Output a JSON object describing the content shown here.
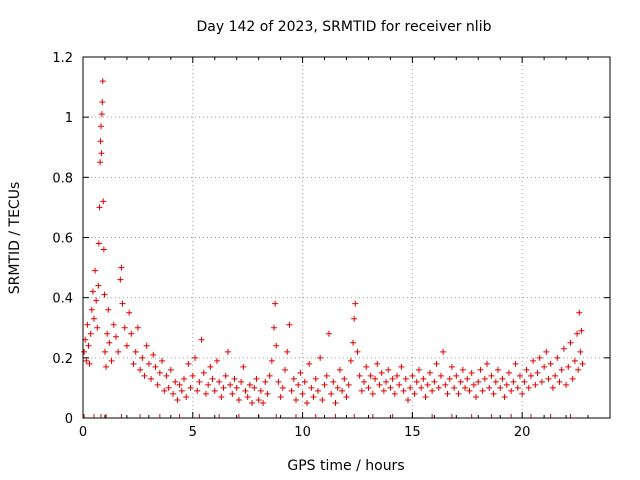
{
  "chart_data": {
    "type": "scatter",
    "title": "Day 142 of 2023, SRMTID for receiver nlib",
    "xlabel": "GPS time / hours",
    "ylabel": "SRMTID / TECUs",
    "xlim": [
      0,
      24
    ],
    "ylim": [
      0,
      1.2
    ],
    "x_ticks": [
      "0",
      "5",
      "10",
      "15",
      "20"
    ],
    "x_tick_values": [
      0,
      5,
      10,
      15,
      20
    ],
    "y_ticks": [
      "0",
      "0.2",
      "0.4",
      "0.6",
      "0.8",
      "1",
      "1.2"
    ],
    "y_tick_values": [
      0,
      0.2,
      0.4,
      0.6,
      0.8,
      1.0,
      1.2
    ],
    "grid": true,
    "marker": "plus",
    "series_color": "#e00000",
    "series": [
      {
        "name": "SRMTID",
        "points": [
          [
            0.05,
            0.22
          ],
          [
            0.1,
            0.26
          ],
          [
            0.15,
            0.19
          ],
          [
            0.2,
            0.31
          ],
          [
            0.25,
            0.24
          ],
          [
            0.3,
            0.18
          ],
          [
            0.35,
            0.28
          ],
          [
            0.4,
            0.36
          ],
          [
            0.45,
            0.42
          ],
          [
            0.5,
            0.33
          ],
          [
            0.55,
            0.49
          ],
          [
            0.6,
            0.39
          ],
          [
            0.65,
            0.3
          ],
          [
            0.7,
            0.44
          ],
          [
            0.72,
            0.58
          ],
          [
            0.75,
            0.7
          ],
          [
            0.78,
            0.85
          ],
          [
            0.8,
            0.92
          ],
          [
            0.82,
            0.97
          ],
          [
            0.84,
            0.88
          ],
          [
            0.86,
            1.01
          ],
          [
            0.88,
            1.05
          ],
          [
            0.9,
            1.12
          ],
          [
            0.92,
            0.72
          ],
          [
            0.95,
            0.56
          ],
          [
            0.98,
            0.41
          ],
          [
            1.0,
            0.22
          ],
          [
            1.05,
            0.17
          ],
          [
            1.1,
            0.28
          ],
          [
            1.15,
            0.36
          ],
          [
            1.2,
            0.25
          ],
          [
            1.3,
            0.19
          ],
          [
            1.4,
            0.31
          ],
          [
            1.5,
            0.27
          ],
          [
            1.6,
            0.22
          ],
          [
            1.7,
            0.46
          ],
          [
            1.75,
            0.5
          ],
          [
            1.8,
            0.38
          ],
          [
            1.9,
            0.3
          ],
          [
            2.0,
            0.24
          ],
          [
            2.1,
            0.35
          ],
          [
            2.2,
            0.28
          ],
          [
            2.3,
            0.18
          ],
          [
            2.4,
            0.22
          ],
          [
            2.5,
            0.3
          ],
          [
            2.6,
            0.16
          ],
          [
            2.7,
            0.2
          ],
          [
            2.8,
            0.14
          ],
          [
            2.9,
            0.24
          ],
          [
            3.0,
            0.18
          ],
          [
            3.1,
            0.13
          ],
          [
            3.2,
            0.21
          ],
          [
            3.3,
            0.17
          ],
          [
            3.4,
            0.11
          ],
          [
            3.5,
            0.15
          ],
          [
            3.6,
            0.19
          ],
          [
            3.7,
            0.09
          ],
          [
            3.8,
            0.14
          ],
          [
            3.9,
            0.1
          ],
          [
            4.0,
            0.16
          ],
          [
            4.1,
            0.08
          ],
          [
            4.2,
            0.12
          ],
          [
            4.3,
            0.06
          ],
          [
            4.4,
            0.11
          ],
          [
            4.5,
            0.09
          ],
          [
            4.6,
            0.13
          ],
          [
            4.7,
            0.07
          ],
          [
            4.8,
            0.18
          ],
          [
            4.9,
            0.1
          ],
          [
            5.0,
            0.14
          ],
          [
            5.1,
            0.2
          ],
          [
            5.2,
            0.09
          ],
          [
            5.3,
            0.12
          ],
          [
            5.4,
            0.26
          ],
          [
            5.5,
            0.15
          ],
          [
            5.6,
            0.08
          ],
          [
            5.7,
            0.11
          ],
          [
            5.8,
            0.17
          ],
          [
            5.9,
            0.13
          ],
          [
            6.0,
            0.09
          ],
          [
            6.1,
            0.19
          ],
          [
            6.2,
            0.12
          ],
          [
            6.3,
            0.07
          ],
          [
            6.4,
            0.1
          ],
          [
            6.5,
            0.14
          ],
          [
            6.6,
            0.22
          ],
          [
            6.7,
            0.11
          ],
          [
            6.8,
            0.08
          ],
          [
            6.9,
            0.13
          ],
          [
            7.0,
            0.1
          ],
          [
            7.1,
            0.06
          ],
          [
            7.2,
            0.12
          ],
          [
            7.3,
            0.17
          ],
          [
            7.4,
            0.09
          ],
          [
            7.5,
            0.07
          ],
          [
            7.6,
            0.11
          ],
          [
            7.7,
            0.05
          ],
          [
            7.8,
            0.1
          ],
          [
            7.9,
            0.13
          ],
          [
            8.0,
            0.06
          ],
          [
            8.1,
            0.09
          ],
          [
            8.2,
            0.05
          ],
          [
            8.3,
            0.12
          ],
          [
            8.4,
            0.08
          ],
          [
            8.5,
            0.14
          ],
          [
            8.6,
            0.19
          ],
          [
            8.7,
            0.3
          ],
          [
            8.75,
            0.38
          ],
          [
            8.8,
            0.24
          ],
          [
            8.9,
            0.12
          ],
          [
            9.0,
            0.07
          ],
          [
            9.1,
            0.1
          ],
          [
            9.2,
            0.16
          ],
          [
            9.3,
            0.22
          ],
          [
            9.4,
            0.31
          ],
          [
            9.5,
            0.09
          ],
          [
            9.6,
            0.13
          ],
          [
            9.7,
            0.06
          ],
          [
            9.8,
            0.11
          ],
          [
            9.9,
            0.15
          ],
          [
            10.0,
            0.08
          ],
          [
            10.1,
            0.12
          ],
          [
            10.2,
            0.05
          ],
          [
            10.3,
            0.18
          ],
          [
            10.4,
            0.1
          ],
          [
            10.5,
            0.07
          ],
          [
            10.6,
            0.13
          ],
          [
            10.7,
            0.09
          ],
          [
            10.8,
            0.2
          ],
          [
            10.9,
            0.06
          ],
          [
            11.0,
            0.11
          ],
          [
            11.1,
            0.14
          ],
          [
            11.2,
            0.28
          ],
          [
            11.3,
            0.08
          ],
          [
            11.4,
            0.12
          ],
          [
            11.5,
            0.05
          ],
          [
            11.6,
            0.1
          ],
          [
            11.7,
            0.16
          ],
          [
            11.8,
            0.09
          ],
          [
            11.9,
            0.13
          ],
          [
            12.0,
            0.07
          ],
          [
            12.1,
            0.11
          ],
          [
            12.2,
            0.19
          ],
          [
            12.3,
            0.25
          ],
          [
            12.35,
            0.33
          ],
          [
            12.4,
            0.38
          ],
          [
            12.5,
            0.22
          ],
          [
            12.6,
            0.14
          ],
          [
            12.7,
            0.09
          ],
          [
            12.8,
            0.12
          ],
          [
            12.9,
            0.17
          ],
          [
            13.0,
            0.1
          ],
          [
            13.1,
            0.14
          ],
          [
            13.2,
            0.08
          ],
          [
            13.3,
            0.13
          ],
          [
            13.4,
            0.18
          ],
          [
            13.5,
            0.11
          ],
          [
            13.6,
            0.15
          ],
          [
            13.7,
            0.09
          ],
          [
            13.8,
            0.12
          ],
          [
            13.9,
            0.16
          ],
          [
            14.0,
            0.1
          ],
          [
            14.1,
            0.13
          ],
          [
            14.2,
            0.08
          ],
          [
            14.3,
            0.14
          ],
          [
            14.4,
            0.11
          ],
          [
            14.5,
            0.17
          ],
          [
            14.6,
            0.09
          ],
          [
            14.7,
            0.13
          ],
          [
            14.8,
            0.06
          ],
          [
            14.9,
            0.1
          ],
          [
            15.0,
            0.14
          ],
          [
            15.1,
            0.08
          ],
          [
            15.2,
            0.12
          ],
          [
            15.3,
            0.16
          ],
          [
            15.4,
            0.1
          ],
          [
            15.5,
            0.13
          ],
          [
            15.6,
            0.07
          ],
          [
            15.7,
            0.11
          ],
          [
            15.8,
            0.15
          ],
          [
            15.9,
            0.09
          ],
          [
            16.0,
            0.12
          ],
          [
            16.1,
            0.18
          ],
          [
            16.2,
            0.1
          ],
          [
            16.3,
            0.14
          ],
          [
            16.4,
            0.22
          ],
          [
            16.5,
            0.11
          ],
          [
            16.6,
            0.08
          ],
          [
            16.7,
            0.13
          ],
          [
            16.8,
            0.17
          ],
          [
            16.9,
            0.1
          ],
          [
            17.0,
            0.14
          ],
          [
            17.1,
            0.08
          ],
          [
            17.2,
            0.12
          ],
          [
            17.3,
            0.16
          ],
          [
            17.4,
            0.1
          ],
          [
            17.5,
            0.13
          ],
          [
            17.6,
            0.09
          ],
          [
            17.7,
            0.15
          ],
          [
            17.8,
            0.11
          ],
          [
            17.9,
            0.07
          ],
          [
            18.0,
            0.12
          ],
          [
            18.1,
            0.16
          ],
          [
            18.2,
            0.09
          ],
          [
            18.3,
            0.13
          ],
          [
            18.4,
            0.18
          ],
          [
            18.5,
            0.1
          ],
          [
            18.6,
            0.14
          ],
          [
            18.7,
            0.08
          ],
          [
            18.8,
            0.12
          ],
          [
            18.9,
            0.16
          ],
          [
            19.0,
            0.1
          ],
          [
            19.1,
            0.13
          ],
          [
            19.2,
            0.07
          ],
          [
            19.3,
            0.11
          ],
          [
            19.4,
            0.15
          ],
          [
            19.5,
            0.09
          ],
          [
            19.6,
            0.12
          ],
          [
            19.7,
            0.18
          ],
          [
            19.8,
            0.1
          ],
          [
            19.9,
            0.14
          ],
          [
            20.0,
            0.08
          ],
          [
            20.1,
            0.12
          ],
          [
            20.2,
            0.16
          ],
          [
            20.3,
            0.1
          ],
          [
            20.4,
            0.14
          ],
          [
            20.5,
            0.19
          ],
          [
            20.6,
            0.11
          ],
          [
            20.7,
            0.15
          ],
          [
            20.8,
            0.2
          ],
          [
            20.9,
            0.12
          ],
          [
            21.0,
            0.17
          ],
          [
            21.1,
            0.22
          ],
          [
            21.2,
            0.13
          ],
          [
            21.3,
            0.18
          ],
          [
            21.4,
            0.1
          ],
          [
            21.5,
            0.14
          ],
          [
            21.6,
            0.2
          ],
          [
            21.7,
            0.12
          ],
          [
            21.8,
            0.16
          ],
          [
            21.9,
            0.23
          ],
          [
            22.0,
            0.11
          ],
          [
            22.1,
            0.17
          ],
          [
            22.2,
            0.25
          ],
          [
            22.3,
            0.13
          ],
          [
            22.4,
            0.19
          ],
          [
            22.5,
            0.28
          ],
          [
            22.55,
            0.16
          ],
          [
            22.6,
            0.35
          ],
          [
            22.65,
            0.22
          ],
          [
            22.7,
            0.29
          ],
          [
            22.75,
            0.18
          ]
        ]
      }
    ]
  }
}
